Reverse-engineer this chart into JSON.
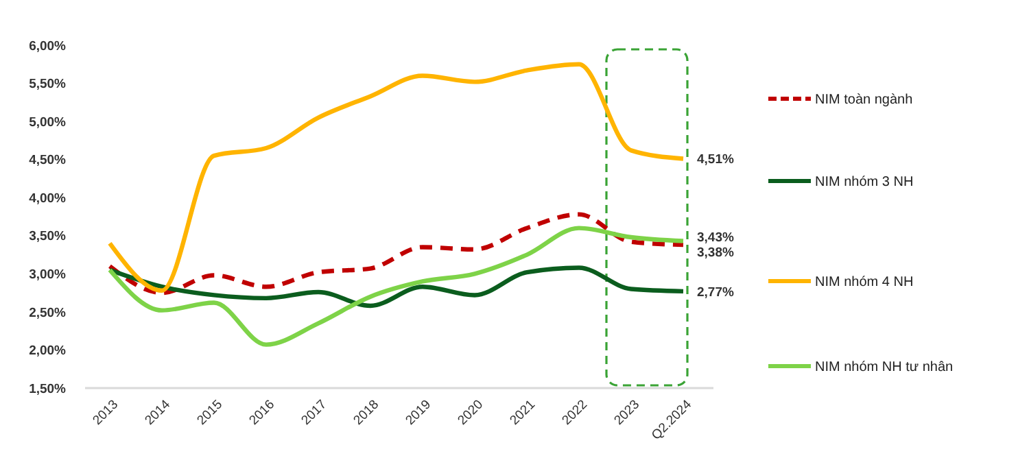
{
  "chart_data": {
    "type": "line",
    "categories": [
      "2013",
      "2014",
      "2015",
      "2016",
      "2017",
      "2018",
      "2019",
      "2020",
      "2021",
      "2022",
      "2023",
      "Q2.2024"
    ],
    "ylim": [
      1.5,
      6
    ],
    "yticks": [
      {
        "value": 1.5,
        "label": "1,50%"
      },
      {
        "value": 2,
        "label": "2,00%"
      },
      {
        "value": 2.5,
        "label": "2,50%"
      },
      {
        "value": 3,
        "label": "3,00%"
      },
      {
        "value": 3.5,
        "label": "3,50%"
      },
      {
        "value": 4,
        "label": "4,00%"
      },
      {
        "value": 4.5,
        "label": "4,50%"
      },
      {
        "value": 5,
        "label": "5,00%"
      },
      {
        "value": 5.5,
        "label": "5,50%"
      },
      {
        "value": 6,
        "label": "6,00%"
      }
    ],
    "grid": false,
    "legend": "right",
    "marker": "none",
    "series": [
      {
        "name": "NIM toàn ngành",
        "color": "#c00000",
        "line_style": "dashed",
        "values": [
          3.1,
          2.75,
          2.98,
          2.83,
          3.02,
          3.07,
          3.35,
          3.32,
          3.6,
          3.78,
          3.42,
          3.38
        ],
        "value_labels": [
          null,
          null,
          null,
          null,
          null,
          null,
          null,
          null,
          null,
          null,
          null,
          "3,38%"
        ]
      },
      {
        "name": "NIM nhóm 3 NH",
        "color": "#0b5d1e",
        "line_style": "solid",
        "values": [
          3.05,
          2.83,
          2.72,
          2.68,
          2.76,
          2.58,
          2.83,
          2.72,
          3.02,
          3.08,
          2.8,
          2.77
        ],
        "value_labels": [
          null,
          null,
          null,
          null,
          null,
          null,
          null,
          null,
          null,
          null,
          null,
          "2,77%"
        ]
      },
      {
        "name": "NIM nhóm 4 NH",
        "color": "#ffb400",
        "line_style": "solid",
        "values": [
          3.4,
          2.78,
          4.55,
          4.65,
          5.05,
          5.33,
          5.6,
          5.52,
          5.67,
          5.75,
          4.62,
          4.51
        ],
        "value_labels": [
          null,
          null,
          null,
          null,
          null,
          null,
          null,
          null,
          null,
          null,
          null,
          "4,51%"
        ]
      },
      {
        "name": "NIM nhóm NH tư nhân",
        "color": "#7ed348",
        "line_style": "solid",
        "values": [
          3.05,
          2.52,
          2.62,
          2.07,
          2.35,
          2.7,
          2.9,
          3.0,
          3.25,
          3.6,
          3.48,
          3.43
        ],
        "value_labels": [
          null,
          null,
          null,
          null,
          null,
          null,
          null,
          null,
          null,
          null,
          null,
          "3,43%"
        ]
      }
    ]
  }
}
